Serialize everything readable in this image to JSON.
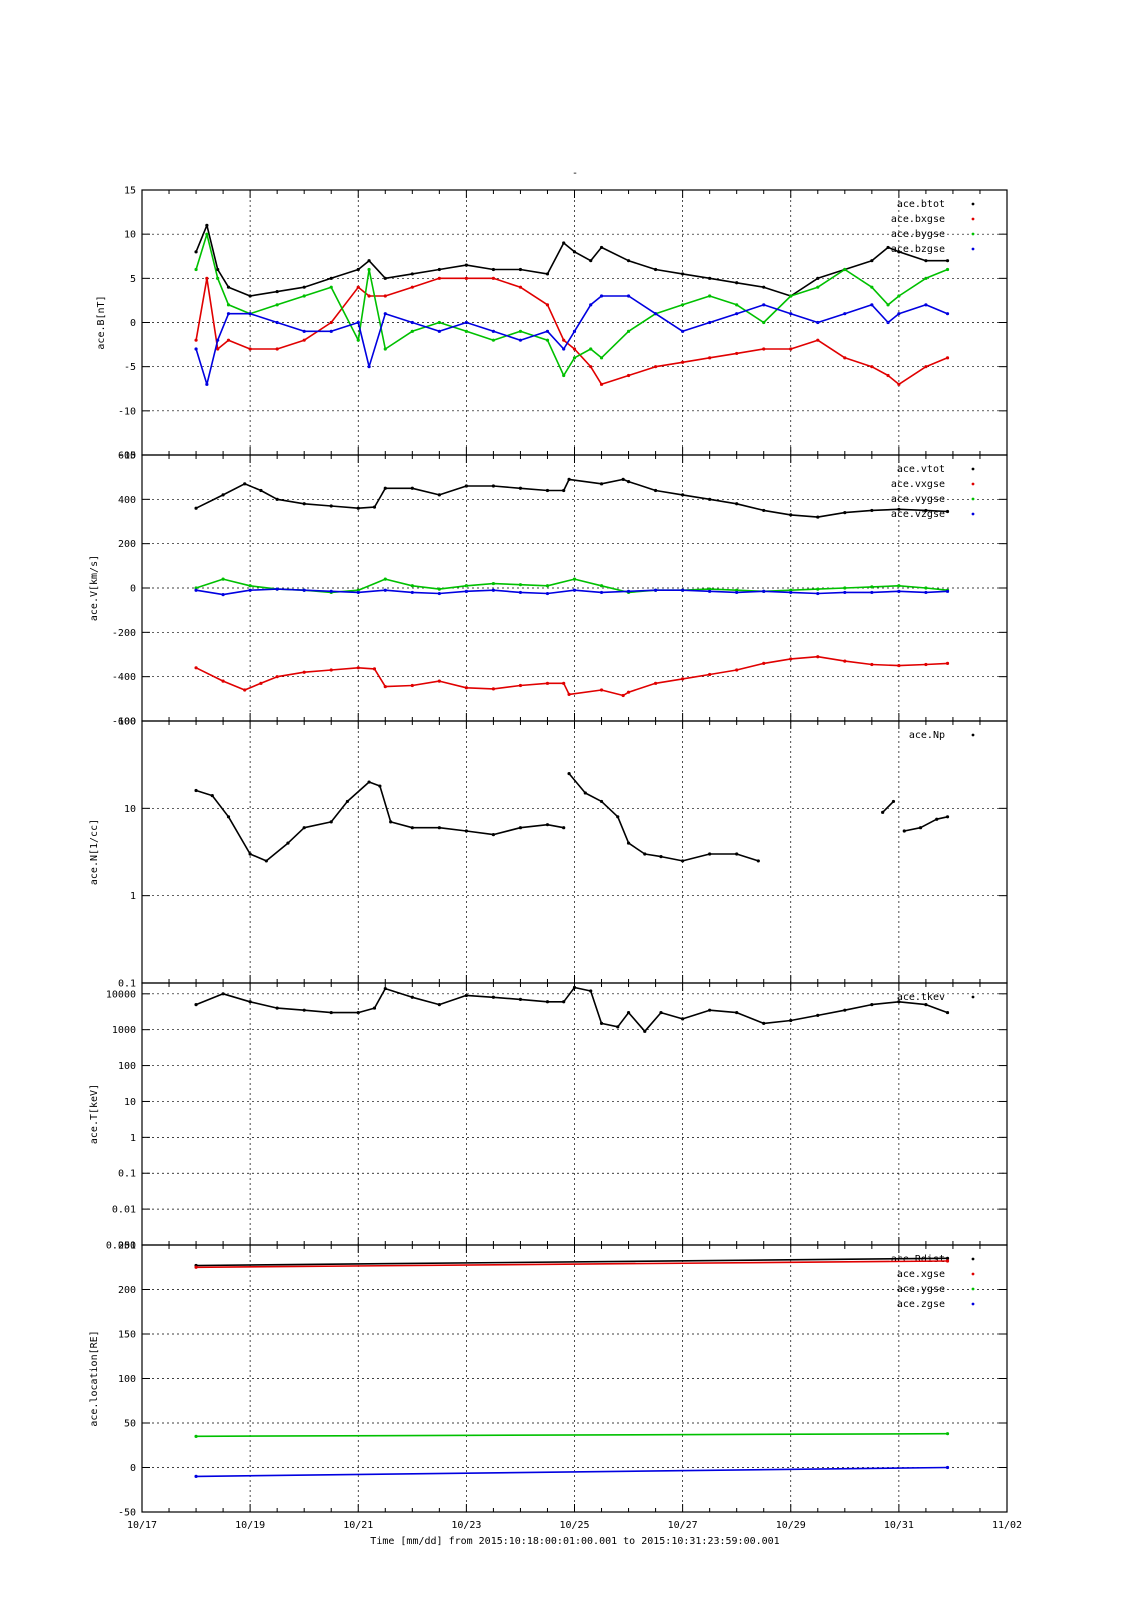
{
  "title": "-",
  "colors": {
    "black": "#000000",
    "red": "#e00000",
    "green": "#00c000",
    "blue": "#0000e0"
  },
  "chart_data": [
    {
      "type": "line",
      "ylabel": "ace.B[nT]",
      "yscale": "linear",
      "ylim": [
        -15,
        15
      ],
      "yticks": [
        15,
        10,
        5,
        0,
        -5,
        -10,
        -15
      ],
      "yticklabels": [
        "15",
        "10",
        "5",
        "0",
        "-5",
        "-10",
        "-15"
      ],
      "grid": true,
      "legend_position": "top-right",
      "series": [
        {
          "name": "ace.btot",
          "color": "#000000",
          "x": [
            18.0,
            18.2,
            18.4,
            18.6,
            19.0,
            19.5,
            20.0,
            20.5,
            21.0,
            21.2,
            21.5,
            22.0,
            22.5,
            23.0,
            23.5,
            24.0,
            24.5,
            24.8,
            25.0,
            25.3,
            25.5,
            26.0,
            26.5,
            27.0,
            27.5,
            28.0,
            28.5,
            29.0,
            29.5,
            30.0,
            30.5,
            30.8,
            31.0,
            31.5,
            31.9
          ],
          "y": [
            8,
            11,
            6,
            4,
            3,
            3.5,
            4,
            5,
            6,
            7,
            5,
            5.5,
            6,
            6.5,
            6,
            6,
            5.5,
            9,
            8,
            7,
            8.5,
            7,
            6,
            5.5,
            5,
            4.5,
            4,
            3,
            5,
            6,
            7,
            8.5,
            8,
            7,
            7
          ]
        },
        {
          "name": "ace.bxgse",
          "color": "#e00000",
          "x": [
            18.0,
            18.2,
            18.4,
            18.6,
            19.0,
            19.5,
            20.0,
            20.5,
            21.0,
            21.2,
            21.5,
            22.0,
            22.5,
            23.0,
            23.5,
            24.0,
            24.5,
            24.8,
            25.0,
            25.3,
            25.5,
            26.0,
            26.5,
            27.0,
            27.5,
            28.0,
            28.5,
            29.0,
            29.5,
            30.0,
            30.5,
            30.8,
            31.0,
            31.5,
            31.9
          ],
          "y": [
            -2,
            5,
            -3,
            -2,
            -3,
            -3,
            -2,
            0,
            4,
            3,
            3,
            4,
            5,
            5,
            5,
            4,
            2,
            -2,
            -3,
            -5,
            -7,
            -6,
            -5,
            -4.5,
            -4,
            -3.5,
            -3,
            -3,
            -2,
            -4,
            -5,
            -6,
            -7,
            -5,
            -4
          ]
        },
        {
          "name": "ace.bygse",
          "color": "#00c000",
          "x": [
            18.0,
            18.2,
            18.4,
            18.6,
            19.0,
            19.5,
            20.0,
            20.5,
            21.0,
            21.2,
            21.5,
            22.0,
            22.5,
            23.0,
            23.5,
            24.0,
            24.5,
            24.8,
            25.0,
            25.3,
            25.5,
            26.0,
            26.5,
            27.0,
            27.5,
            28.0,
            28.5,
            29.0,
            29.5,
            30.0,
            30.5,
            30.8,
            31.0,
            31.5,
            31.9
          ],
          "y": [
            6,
            10,
            5,
            2,
            1,
            2,
            3,
            4,
            -2,
            6,
            -3,
            -1,
            0,
            -1,
            -2,
            -1,
            -2,
            -6,
            -4,
            -3,
            -4,
            -1,
            1,
            2,
            3,
            2,
            0,
            3,
            4,
            6,
            4,
            2,
            3,
            5,
            6
          ]
        },
        {
          "name": "ace.bzgse",
          "color": "#0000e0",
          "x": [
            18.0,
            18.2,
            18.4,
            18.6,
            19.0,
            19.5,
            20.0,
            20.5,
            21.0,
            21.2,
            21.5,
            22.0,
            22.5,
            23.0,
            23.5,
            24.0,
            24.5,
            24.8,
            25.0,
            25.3,
            25.5,
            26.0,
            26.5,
            27.0,
            27.5,
            28.0,
            28.5,
            29.0,
            29.5,
            30.0,
            30.5,
            30.8,
            31.0,
            31.5,
            31.9
          ],
          "y": [
            -3,
            -7,
            -2,
            1,
            1,
            0,
            -1,
            -1,
            0,
            -5,
            1,
            0,
            -1,
            0,
            -1,
            -2,
            -1,
            -3,
            -1,
            2,
            3,
            3,
            1,
            -1,
            0,
            1,
            2,
            1,
            0,
            1,
            2,
            0,
            1,
            2,
            1
          ]
        }
      ]
    },
    {
      "type": "line",
      "ylabel": "ace.V[km/s]",
      "yscale": "linear",
      "ylim": [
        -600,
        600
      ],
      "yticks": [
        600,
        400,
        200,
        0,
        -200,
        -400,
        -600
      ],
      "yticklabels": [
        "600",
        "400",
        "200",
        "0",
        "-200",
        "-400",
        "-600"
      ],
      "grid": true,
      "legend_position": "top-right",
      "series": [
        {
          "name": "ace.vtot",
          "color": "#000000",
          "x": [
            18.0,
            18.5,
            18.9,
            19.2,
            19.5,
            20.0,
            20.5,
            21.0,
            21.3,
            21.5,
            22.0,
            22.5,
            23.0,
            23.5,
            24.0,
            24.5,
            24.8,
            24.9,
            25.5,
            25.9,
            26.0,
            26.5,
            27.0,
            27.5,
            28.0,
            28.5,
            29.0,
            29.5,
            30.0,
            30.5,
            31.0,
            31.5,
            31.9
          ],
          "y": [
            360,
            420,
            470,
            440,
            400,
            380,
            370,
            360,
            365,
            450,
            450,
            420,
            460,
            460,
            450,
            440,
            440,
            490,
            470,
            490,
            480,
            440,
            420,
            400,
            380,
            350,
            330,
            320,
            340,
            350,
            355,
            350,
            345
          ]
        },
        {
          "name": "ace.vxgse",
          "color": "#e00000",
          "x": [
            18.0,
            18.5,
            18.9,
            19.2,
            19.5,
            20.0,
            20.5,
            21.0,
            21.3,
            21.5,
            22.0,
            22.5,
            23.0,
            23.5,
            24.0,
            24.5,
            24.8,
            24.9,
            25.5,
            25.9,
            26.0,
            26.5,
            27.0,
            27.5,
            28.0,
            28.5,
            29.0,
            29.5,
            30.0,
            30.5,
            31.0,
            31.5,
            31.9
          ],
          "y": [
            -360,
            -420,
            -460,
            -430,
            -400,
            -380,
            -370,
            -360,
            -365,
            -445,
            -440,
            -420,
            -450,
            -455,
            -440,
            -430,
            -430,
            -480,
            -460,
            -485,
            -470,
            -430,
            -410,
            -390,
            -370,
            -340,
            -320,
            -310,
            -330,
            -345,
            -350,
            -345,
            -340
          ]
        },
        {
          "name": "ace.vygse",
          "color": "#00c000",
          "x": [
            18.0,
            18.5,
            19.0,
            19.5,
            20.0,
            20.5,
            21.0,
            21.5,
            22.0,
            22.5,
            23.0,
            23.5,
            24.0,
            24.5,
            25.0,
            25.5,
            26.0,
            26.5,
            27.0,
            27.5,
            28.0,
            28.5,
            29.0,
            29.5,
            30.0,
            30.5,
            31.0,
            31.5,
            31.9
          ],
          "y": [
            0,
            40,
            10,
            -5,
            -10,
            -20,
            -10,
            40,
            10,
            -5,
            10,
            20,
            15,
            10,
            40,
            10,
            -20,
            -10,
            -10,
            -5,
            -10,
            -15,
            -10,
            -5,
            0,
            5,
            10,
            0,
            -10
          ]
        },
        {
          "name": "ace.vzgse",
          "color": "#0000e0",
          "x": [
            18.0,
            18.5,
            19.0,
            19.5,
            20.0,
            20.5,
            21.0,
            21.5,
            22.0,
            22.5,
            23.0,
            23.5,
            24.0,
            24.5,
            25.0,
            25.5,
            26.0,
            26.5,
            27.0,
            27.5,
            28.0,
            28.5,
            29.0,
            29.5,
            30.0,
            30.5,
            31.0,
            31.5,
            31.9
          ],
          "y": [
            -10,
            -30,
            -10,
            -5,
            -10,
            -15,
            -20,
            -10,
            -20,
            -25,
            -15,
            -10,
            -20,
            -25,
            -10,
            -20,
            -15,
            -10,
            -10,
            -15,
            -20,
            -15,
            -20,
            -25,
            -20,
            -20,
            -15,
            -20,
            -15
          ]
        }
      ]
    },
    {
      "type": "scatter",
      "ylabel": "ace.N[1/cc]",
      "yscale": "log",
      "ylim": [
        0.1,
        100
      ],
      "yticks": [
        100,
        10,
        1,
        0.1
      ],
      "yticklabels": [
        "100",
        "10",
        "1",
        "0.1"
      ],
      "grid": true,
      "legend_position": "top-right",
      "series": [
        {
          "name": "ace.Np",
          "color": "#000000",
          "segments": [
            {
              "x": [
                18.0,
                18.3,
                18.6,
                19.0,
                19.3,
                19.7,
                20.0,
                20.5,
                20.8,
                21.2,
                21.4,
                21.6,
                22.0,
                22.5,
                23.0,
                23.5,
                24.0,
                24.5,
                24.8
              ],
              "y": [
                16,
                14,
                8,
                3,
                2.5,
                4,
                6,
                7,
                12,
                20,
                18,
                7,
                6,
                6,
                5.5,
                5,
                6,
                6.5,
                6
              ]
            },
            {
              "x": [
                24.9,
                25.2,
                25.5,
                25.8,
                26.0,
                26.3,
                26.6,
                27.0,
                27.5,
                28.0,
                28.4
              ],
              "y": [
                25,
                15,
                12,
                8,
                4,
                3,
                2.8,
                2.5,
                3,
                3,
                2.5
              ]
            },
            {
              "x": [
                30.7,
                30.9
              ],
              "y": [
                9,
                12
              ]
            },
            {
              "x": [
                31.1,
                31.4,
                31.7,
                31.9
              ],
              "y": [
                5.5,
                6,
                7.5,
                8
              ]
            }
          ]
        }
      ]
    },
    {
      "type": "scatter",
      "ylabel": "ace.T[keV]",
      "yscale": "log",
      "ylim": [
        0.001,
        20000
      ],
      "yticks": [
        10000,
        1000,
        100,
        10,
        1,
        0.1,
        0.01,
        0.001
      ],
      "yticklabels": [
        "10000",
        "1000",
        "100",
        "10",
        "1",
        "0.1",
        "0.01",
        "0.001"
      ],
      "grid": true,
      "legend_position": "top-right",
      "series": [
        {
          "name": "ace.tkev",
          "color": "#000000",
          "segments": [
            {
              "x": [
                18.0,
                18.5,
                19.0,
                19.5,
                20.0,
                20.5,
                21.0,
                21.3,
                21.5,
                22.0,
                22.5,
                23.0,
                23.5,
                24.0,
                24.5,
                24.8,
                25.0,
                25.3,
                25.5,
                25.8,
                26.0,
                26.3,
                26.6,
                27.0,
                27.5,
                28.0,
                28.5,
                29.0,
                29.5,
                30.0,
                30.5,
                31.0,
                31.5,
                31.9
              ],
              "y": [
                5000,
                10000,
                6000,
                4000,
                3500,
                3000,
                3000,
                4000,
                14000,
                8000,
                5000,
                9000,
                8000,
                7000,
                6000,
                6000,
                15000,
                12000,
                1500,
                1200,
                3000,
                900,
                3000,
                2000,
                3500,
                3000,
                1500,
                1800,
                2500,
                3500,
                5000,
                6000,
                5000,
                3000
              ]
            }
          ]
        }
      ]
    },
    {
      "type": "line",
      "ylabel": "ace.location[RE]",
      "yscale": "linear",
      "ylim": [
        -50,
        250
      ],
      "yticks": [
        250,
        200,
        150,
        100,
        50,
        0,
        -50
      ],
      "yticklabels": [
        "250",
        "200",
        "150",
        "100",
        "50",
        "0",
        "-50"
      ],
      "grid": true,
      "legend_position": "top-right",
      "x": [
        18.0,
        31.9
      ],
      "xlim": [
        17,
        33
      ],
      "xticks": [
        17,
        19,
        21,
        23,
        25,
        27,
        29,
        31,
        33
      ],
      "xticklabels": [
        "10/17",
        "10/19",
        "10/21",
        "10/23",
        "10/25",
        "10/27",
        "10/29",
        "10/31",
        "11/02"
      ],
      "xlabel": "Time [mm/dd]  from 2015:10:18:00:01:00.001  to  2015:10:31:23:59:00.001",
      "series": [
        {
          "name": "ace.Rdist",
          "color": "#000000",
          "y": [
            227,
            235
          ]
        },
        {
          "name": "ace.xgse",
          "color": "#e00000",
          "y": [
            225,
            232
          ]
        },
        {
          "name": "ace.ygse",
          "color": "#00c000",
          "y": [
            35,
            38
          ]
        },
        {
          "name": "ace.zgse",
          "color": "#0000e0",
          "y": [
            -10,
            0
          ]
        }
      ]
    }
  ]
}
